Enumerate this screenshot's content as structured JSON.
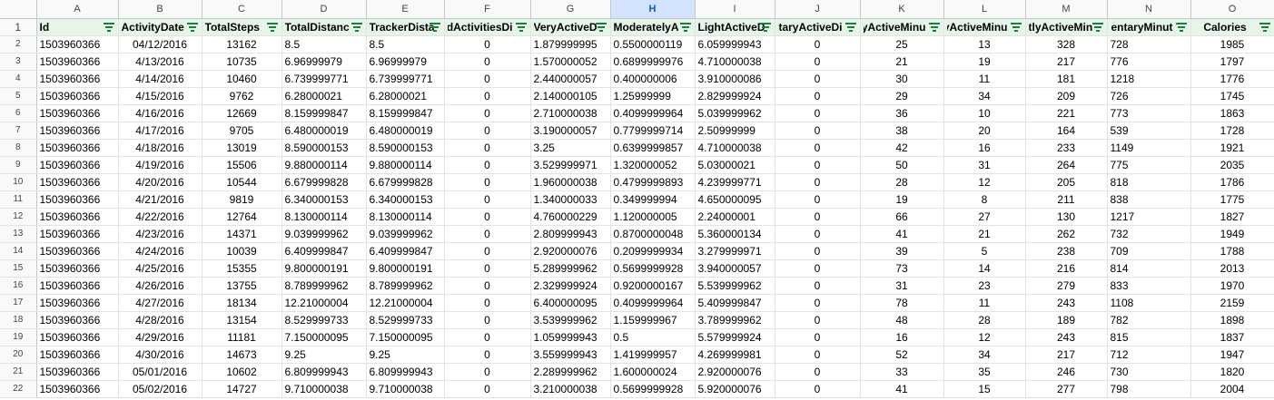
{
  "column_letters": [
    "A",
    "B",
    "C",
    "D",
    "E",
    "F",
    "G",
    "H",
    "I",
    "J",
    "K",
    "L",
    "M",
    "N",
    "O"
  ],
  "selected_column": "H",
  "row_numbers": [
    "1",
    "2",
    "3",
    "4",
    "5",
    "6",
    "7",
    "8",
    "9",
    "10",
    "11",
    "12",
    "13",
    "14",
    "15",
    "16",
    "17",
    "18",
    "19",
    "20",
    "21",
    "22"
  ],
  "header_cells": [
    "Id",
    "ActivityDate",
    "TotalSteps",
    "TotalDistanc",
    "TrackerDistä",
    "dActivitiesDi",
    "VeryActiveD",
    "ModeratelyA",
    "LightActiveD",
    "taryActiveDi:",
    "yActiveMinu",
    "lyActiveMinu",
    "tlyActiveMin",
    "dentaryMinut",
    "Calories"
  ],
  "rows": [
    [
      "1503960366",
      "04/12/2016",
      "13162",
      "8.5",
      "8.5",
      "0",
      "1.879999995",
      "0.5500000119",
      "6.059999943",
      "0",
      "25",
      "13",
      "328",
      "728",
      "1985"
    ],
    [
      "1503960366",
      "4/13/2016",
      "10735",
      "6.96999979",
      "6.96999979",
      "0",
      "1.570000052",
      "0.6899999976",
      "4.710000038",
      "0",
      "21",
      "19",
      "217",
      "776",
      "1797"
    ],
    [
      "1503960366",
      "4/14/2016",
      "10460",
      "6.739999771",
      "6.739999771",
      "0",
      "2.440000057",
      "0.400000006",
      "3.910000086",
      "0",
      "30",
      "11",
      "181",
      "1218",
      "1776"
    ],
    [
      "1503960366",
      "4/15/2016",
      "9762",
      "6.28000021",
      "6.28000021",
      "0",
      "2.140000105",
      "1.25999999",
      "2.829999924",
      "0",
      "29",
      "34",
      "209",
      "726",
      "1745"
    ],
    [
      "1503960366",
      "4/16/2016",
      "12669",
      "8.159999847",
      "8.159999847",
      "0",
      "2.710000038",
      "0.4099999964",
      "5.039999962",
      "0",
      "36",
      "10",
      "221",
      "773",
      "1863"
    ],
    [
      "1503960366",
      "4/17/2016",
      "9705",
      "6.480000019",
      "6.480000019",
      "0",
      "3.190000057",
      "0.7799999714",
      "2.50999999",
      "0",
      "38",
      "20",
      "164",
      "539",
      "1728"
    ],
    [
      "1503960366",
      "4/18/2016",
      "13019",
      "8.590000153",
      "8.590000153",
      "0",
      "3.25",
      "0.6399999857",
      "4.710000038",
      "0",
      "42",
      "16",
      "233",
      "1149",
      "1921"
    ],
    [
      "1503960366",
      "4/19/2016",
      "15506",
      "9.880000114",
      "9.880000114",
      "0",
      "3.529999971",
      "1.320000052",
      "5.03000021",
      "0",
      "50",
      "31",
      "264",
      "775",
      "2035"
    ],
    [
      "1503960366",
      "4/20/2016",
      "10544",
      "6.679999828",
      "6.679999828",
      "0",
      "1.960000038",
      "0.4799999893",
      "4.239999771",
      "0",
      "28",
      "12",
      "205",
      "818",
      "1786"
    ],
    [
      "1503960366",
      "4/21/2016",
      "9819",
      "6.340000153",
      "6.340000153",
      "0",
      "1.340000033",
      "0.349999994",
      "4.650000095",
      "0",
      "19",
      "8",
      "211",
      "838",
      "1775"
    ],
    [
      "1503960366",
      "4/22/2016",
      "12764",
      "8.130000114",
      "8.130000114",
      "0",
      "4.760000229",
      "1.120000005",
      "2.24000001",
      "0",
      "66",
      "27",
      "130",
      "1217",
      "1827"
    ],
    [
      "1503960366",
      "4/23/2016",
      "14371",
      "9.039999962",
      "9.039999962",
      "0",
      "2.809999943",
      "0.8700000048",
      "5.360000134",
      "0",
      "41",
      "21",
      "262",
      "732",
      "1949"
    ],
    [
      "1503960366",
      "4/24/2016",
      "10039",
      "6.409999847",
      "6.409999847",
      "0",
      "2.920000076",
      "0.2099999934",
      "3.279999971",
      "0",
      "39",
      "5",
      "238",
      "709",
      "1788"
    ],
    [
      "1503960366",
      "4/25/2016",
      "15355",
      "9.800000191",
      "9.800000191",
      "0",
      "5.289999962",
      "0.5699999928",
      "3.940000057",
      "0",
      "73",
      "14",
      "216",
      "814",
      "2013"
    ],
    [
      "1503960366",
      "4/26/2016",
      "13755",
      "8.789999962",
      "8.789999962",
      "0",
      "2.329999924",
      "0.9200000167",
      "5.539999962",
      "0",
      "31",
      "23",
      "279",
      "833",
      "1970"
    ],
    [
      "1503960366",
      "4/27/2016",
      "18134",
      "12.21000004",
      "12.21000004",
      "0",
      "6.400000095",
      "0.4099999964",
      "5.409999847",
      "0",
      "78",
      "11",
      "243",
      "1108",
      "2159"
    ],
    [
      "1503960366",
      "4/28/2016",
      "13154",
      "8.529999733",
      "8.529999733",
      "0",
      "3.539999962",
      "1.159999967",
      "3.789999962",
      "0",
      "48",
      "28",
      "189",
      "782",
      "1898"
    ],
    [
      "1503960366",
      "4/29/2016",
      "11181",
      "7.150000095",
      "7.150000095",
      "0",
      "1.059999943",
      "0.5",
      "5.579999924",
      "0",
      "16",
      "12",
      "243",
      "815",
      "1837"
    ],
    [
      "1503960366",
      "4/30/2016",
      "14673",
      "9.25",
      "9.25",
      "0",
      "3.559999943",
      "1.419999957",
      "4.269999981",
      "0",
      "52",
      "34",
      "217",
      "712",
      "1947"
    ],
    [
      "1503960366",
      "05/01/2016",
      "10602",
      "6.809999943",
      "6.809999943",
      "0",
      "2.289999962",
      "1.600000024",
      "2.920000076",
      "0",
      "33",
      "35",
      "246",
      "730",
      "1820"
    ],
    [
      "1503960366",
      "05/02/2016",
      "14727",
      "9.710000038",
      "9.710000038",
      "0",
      "3.210000038",
      "0.5699999928",
      "5.920000076",
      "0",
      "41",
      "15",
      "277",
      "798",
      "2004"
    ]
  ],
  "column_align": [
    "left",
    "center",
    "center",
    "left",
    "left",
    "center",
    "left",
    "left",
    "left",
    "center",
    "center",
    "center",
    "center",
    "right",
    "center"
  ],
  "header_align": [
    "left",
    "left",
    "left",
    "left",
    "left",
    "rtl",
    "left",
    "left",
    "left",
    "rtl",
    "rtl",
    "rtl",
    "left",
    "rtl",
    "center"
  ],
  "colors": {
    "header_fill": "#e6f4ea",
    "filter_icon": "#188038",
    "gridline": "#e2e3e3",
    "selected_header": "#d3e3fd"
  },
  "icons": {
    "filter": "filter-funnel-icon"
  }
}
